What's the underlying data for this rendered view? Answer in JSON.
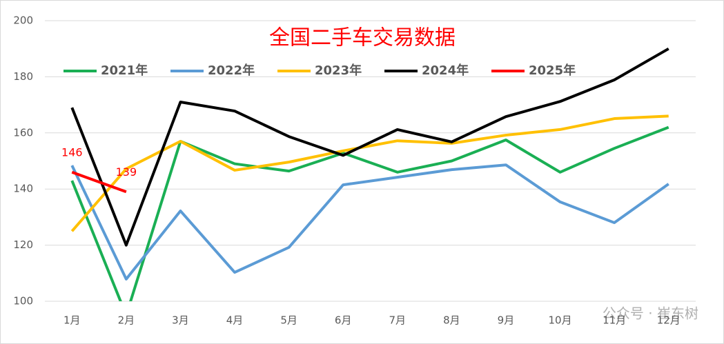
{
  "chart_data": {
    "type": "line",
    "title": "全国二手车交易数据",
    "categories": [
      "1月",
      "2月",
      "3月",
      "4月",
      "5月",
      "6月",
      "7月",
      "8月",
      "9月",
      "10月",
      "11月",
      "12月"
    ],
    "series": [
      {
        "name": "2021年",
        "color": "#1aaf54",
        "values": [
          143,
          95,
          157,
          149,
          146.4,
          152.8,
          146,
          150,
          157.5,
          146,
          154.5,
          162
        ]
      },
      {
        "name": "2022年",
        "color": "#5b9bd5",
        "values": [
          148.4,
          107.9,
          132.2,
          110.3,
          119.2,
          141.5,
          144.2,
          146.9,
          148.6,
          135.4,
          128,
          141.8
        ]
      },
      {
        "name": "2023年",
        "color": "#ffc000",
        "values": [
          125,
          147.2,
          157,
          146.7,
          149.6,
          153.6,
          157.2,
          156.3,
          159.2,
          161.2,
          165.1,
          166
        ]
      },
      {
        "name": "2024年",
        "color": "#000000",
        "values": [
          169,
          120,
          171,
          167.8,
          158.7,
          152,
          161.2,
          156.8,
          165.8,
          171.2,
          178.9,
          190
        ]
      },
      {
        "name": "2025年",
        "color": "#ff0000",
        "values": [
          146,
          139,
          null,
          null,
          null,
          null,
          null,
          null,
          null,
          null,
          null,
          null
        ],
        "data_labels": true
      }
    ],
    "ylim": [
      100,
      200
    ],
    "yticks": [
      100,
      120,
      140,
      160,
      180,
      200
    ],
    "grid": true,
    "legend": "top",
    "watermark": "公众号 · 崔东树"
  }
}
